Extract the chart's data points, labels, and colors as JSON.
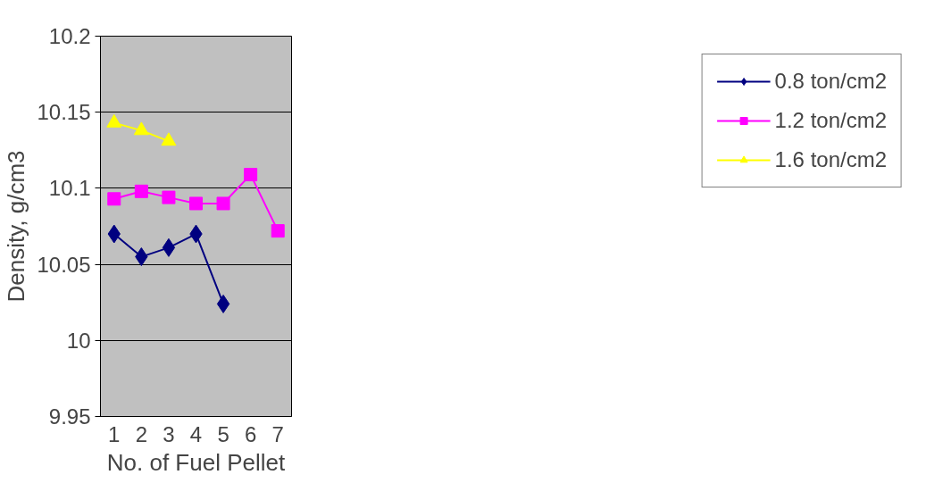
{
  "chart_data": {
    "type": "line",
    "xlabel": "No. of Fuel Pellet",
    "ylabel": "Density, g/cm3",
    "categories": [
      "1",
      "2",
      "3",
      "4",
      "5",
      "6",
      "7"
    ],
    "series": [
      {
        "name": "0.8 ton/cm2",
        "color": "#000080",
        "marker": "diamond",
        "values": [
          10.07,
          10.055,
          10.061,
          10.07,
          10.024,
          null,
          null
        ]
      },
      {
        "name": "1.2 ton/cm2",
        "color": "#ff00ff",
        "marker": "square",
        "values": [
          10.093,
          10.098,
          10.094,
          10.09,
          10.09,
          10.109,
          10.072
        ]
      },
      {
        "name": "1.6 ton/cm2",
        "color": "#ffff00",
        "marker": "triangle",
        "values": [
          10.143,
          10.138,
          10.131,
          null,
          null,
          null,
          null
        ]
      }
    ],
    "ylim": [
      9.95,
      10.2
    ],
    "yticks": [
      9.95,
      10,
      10.05,
      10.1,
      10.15,
      10.2
    ],
    "grid": "y",
    "legend": "right",
    "line_style": "solid"
  }
}
